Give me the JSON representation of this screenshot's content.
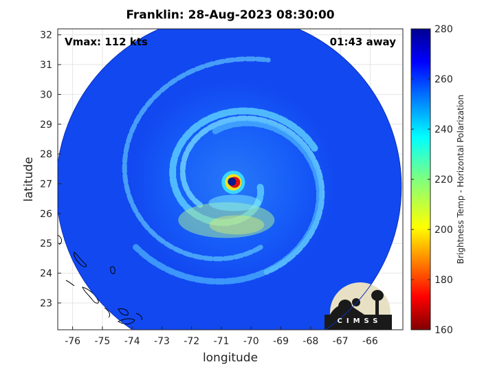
{
  "title": "Franklin: 28-Aug-2023 08:30:00",
  "annotations": {
    "vmax": "Vmax: 112 kts",
    "time_away": "01:43 away"
  },
  "logo_text": "CIMSS",
  "chart_data": {
    "type": "heatmap",
    "title": "Franklin: 28-Aug-2023 08:30:00",
    "xlabel": "longitude",
    "ylabel": "latitude",
    "xlim": [
      -76.5,
      -64.9
    ],
    "ylim": [
      22.1,
      32.2
    ],
    "xticks": [
      -76,
      -75,
      -74,
      -73,
      -72,
      -71,
      -70,
      -69,
      -68,
      -67,
      -66
    ],
    "yticks": [
      23,
      24,
      25,
      26,
      27,
      28,
      29,
      30,
      31,
      32
    ],
    "grid": true,
    "colorbar": {
      "label": "Brightness Temp - Horizontal Polarization",
      "range": [
        160,
        280
      ],
      "ticks": [
        160,
        180,
        200,
        220,
        240,
        260,
        280
      ],
      "colormap": "jet"
    },
    "storm_center": {
      "lon": -70.6,
      "lat": 27.05
    },
    "swath_center": {
      "lon": -70.75,
      "lat": 26.9
    },
    "swath_radius_deg": 5.8
  },
  "colors": {
    "background_field": "#1248f0",
    "eye_cold": "#0a1a8c",
    "eye_warm": "#e01010",
    "land_outline": "#000000"
  }
}
